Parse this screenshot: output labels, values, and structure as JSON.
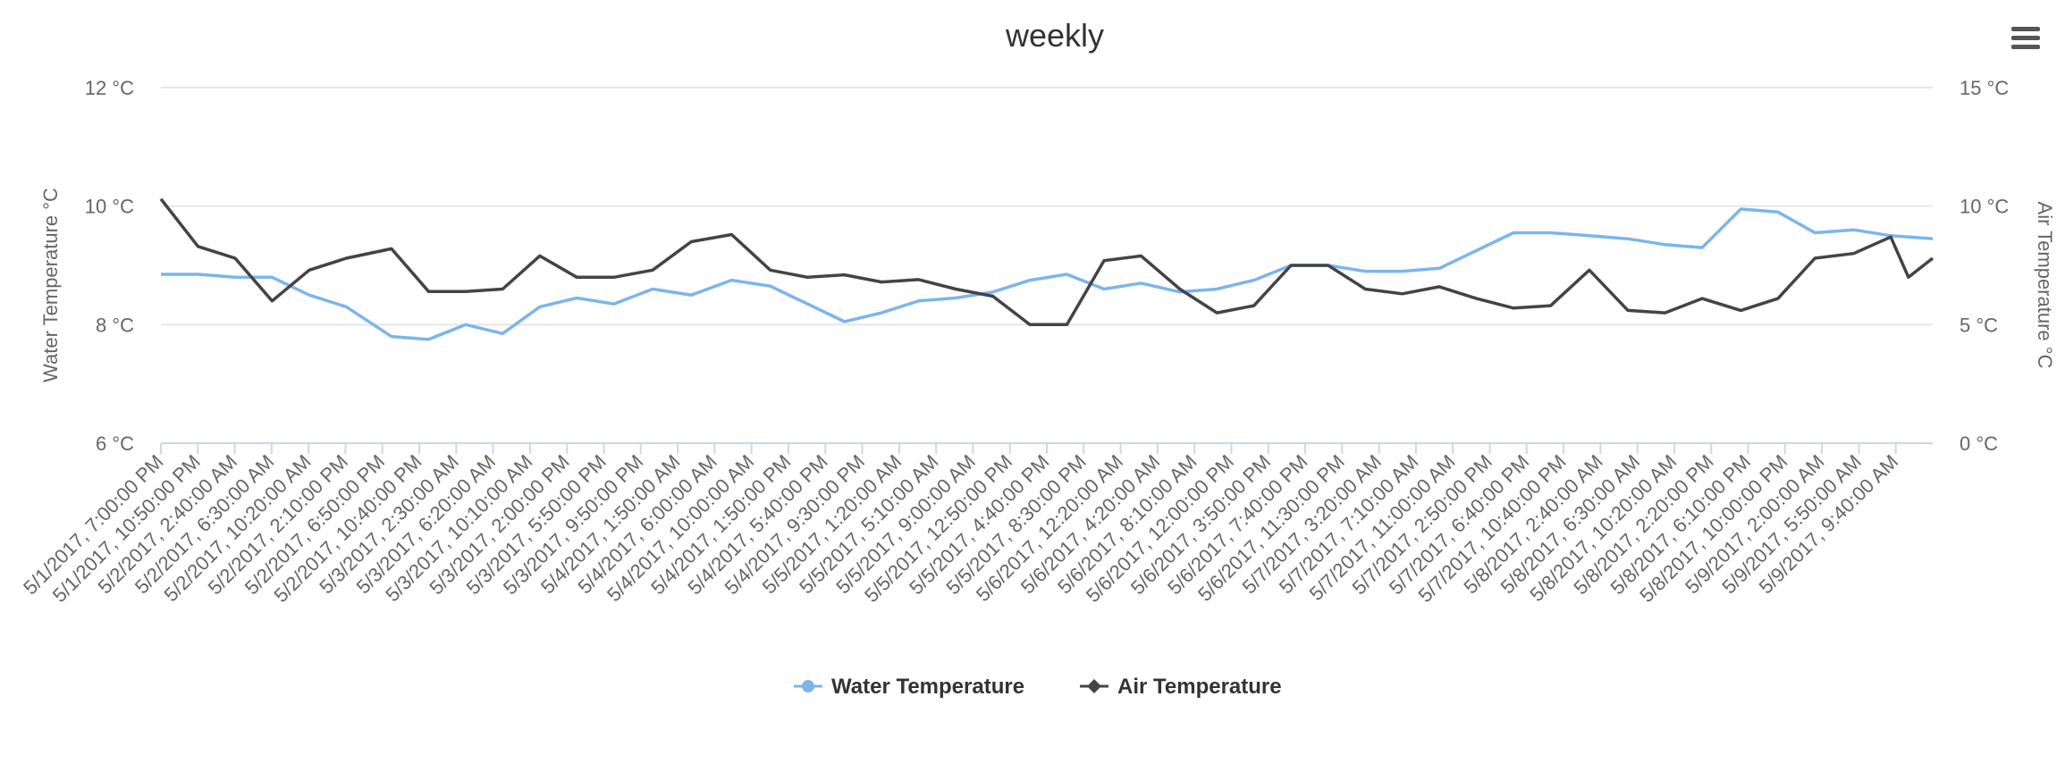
{
  "chart_data": {
    "type": "line",
    "title": "weekly",
    "xlabel": "",
    "y_left": {
      "label": "Water Temperature °C",
      "range": [
        6,
        12
      ],
      "ticks": [
        6,
        8,
        10,
        12
      ],
      "tick_labels": [
        "6 °C",
        "8 °C",
        "10 °C",
        "12 °C"
      ]
    },
    "y_right": {
      "label": "Air Temperature °C",
      "range": [
        0,
        15
      ],
      "ticks": [
        0,
        5,
        10,
        15
      ],
      "tick_labels": [
        "0 °C",
        "5 °C",
        "10 °C",
        "15 °C"
      ]
    },
    "grid": true,
    "legend_position": "bottom-center",
    "x_range": [
      "5/1/2017, 7:00:00 PM",
      "5/9/2017, 10:10:00 AM"
    ],
    "x_tick_labels": [
      "5/1/2017, 7:00:00 PM",
      "5/1/2017, 10:50:00 PM",
      "5/2/2017, 2:40:00 AM",
      "5/2/2017, 6:30:00 AM",
      "5/2/2017, 10:20:00 AM",
      "5/2/2017, 2:10:00 PM",
      "5/2/2017, 6:50:00 PM",
      "5/2/2017, 10:40:00 PM",
      "5/3/2017, 2:30:00 AM",
      "5/3/2017, 6:20:00 AM",
      "5/3/2017, 10:10:00 AM",
      "5/3/2017, 2:00:00 PM",
      "5/3/2017, 5:50:00 PM",
      "5/3/2017, 9:50:00 PM",
      "5/4/2017, 1:50:00 AM",
      "5/4/2017, 6:00:00 AM",
      "5/4/2017, 10:00:00 AM",
      "5/4/2017, 1:50:00 PM",
      "5/4/2017, 5:40:00 PM",
      "5/4/2017, 9:30:00 PM",
      "5/5/2017, 1:20:00 AM",
      "5/5/2017, 5:10:00 AM",
      "5/5/2017, 9:00:00 AM",
      "5/5/2017, 12:50:00 PM",
      "5/5/2017, 4:40:00 PM",
      "5/5/2017, 8:30:00 PM",
      "5/6/2017, 12:20:00 AM",
      "5/6/2017, 4:20:00 AM",
      "5/6/2017, 8:10:00 AM",
      "5/6/2017, 12:00:00 PM",
      "5/6/2017, 3:50:00 PM",
      "5/6/2017, 7:40:00 PM",
      "5/6/2017, 11:30:00 PM",
      "5/7/2017, 3:20:00 AM",
      "5/7/2017, 7:10:00 AM",
      "5/7/2017, 11:00:00 AM",
      "5/7/2017, 2:50:00 PM",
      "5/7/2017, 6:40:00 PM",
      "5/7/2017, 10:40:00 PM",
      "5/8/2017, 2:40:00 AM",
      "5/8/2017, 6:30:00 AM",
      "5/8/2017, 10:20:00 AM",
      "5/8/2017, 2:20:00 PM",
      "5/8/2017, 6:10:00 PM",
      "5/8/2017, 10:00:00 PM",
      "5/9/2017, 2:00:00 AM",
      "5/9/2017, 5:50:00 AM",
      "5/9/2017, 9:40:00 AM"
    ],
    "series": [
      {
        "name": "Water Temperature",
        "axis": "left",
        "color": "#7cb5ec",
        "marker": "circle",
        "points": [
          [
            "5/1/2017, 7:00:00 PM",
            8.85
          ],
          [
            "5/1/2017, 10:50:00 PM",
            8.85
          ],
          [
            "5/2/2017, 2:40:00 AM",
            8.8
          ],
          [
            "5/2/2017, 6:30:00 AM",
            8.8
          ],
          [
            "5/2/2017, 10:20:00 AM",
            8.5
          ],
          [
            "5/2/2017, 2:10:00 PM",
            8.3
          ],
          [
            "5/2/2017, 6:50:00 PM",
            7.8
          ],
          [
            "5/2/2017, 10:40:00 PM",
            7.75
          ],
          [
            "5/3/2017, 2:30:00 AM",
            8.0
          ],
          [
            "5/3/2017, 6:20:00 AM",
            7.85
          ],
          [
            "5/3/2017, 10:10:00 AM",
            8.3
          ],
          [
            "5/3/2017, 2:00:00 PM",
            8.45
          ],
          [
            "5/3/2017, 5:50:00 PM",
            8.35
          ],
          [
            "5/3/2017, 9:50:00 PM",
            8.6
          ],
          [
            "5/4/2017, 1:50:00 AM",
            8.5
          ],
          [
            "5/4/2017, 6:00:00 AM",
            8.75
          ],
          [
            "5/4/2017, 10:00:00 AM",
            8.65
          ],
          [
            "5/4/2017, 1:50:00 PM",
            8.35
          ],
          [
            "5/4/2017, 5:40:00 PM",
            8.05
          ],
          [
            "5/4/2017, 9:30:00 PM",
            8.2
          ],
          [
            "5/5/2017, 1:20:00 AM",
            8.4
          ],
          [
            "5/5/2017, 5:10:00 AM",
            8.45
          ],
          [
            "5/5/2017, 9:00:00 AM",
            8.55
          ],
          [
            "5/5/2017, 12:50:00 PM",
            8.75
          ],
          [
            "5/5/2017, 4:40:00 PM",
            8.85
          ],
          [
            "5/5/2017, 8:30:00 PM",
            8.6
          ],
          [
            "5/6/2017, 12:20:00 AM",
            8.7
          ],
          [
            "5/6/2017, 4:20:00 AM",
            8.55
          ],
          [
            "5/6/2017, 8:10:00 AM",
            8.6
          ],
          [
            "5/6/2017, 12:00:00 PM",
            8.75
          ],
          [
            "5/6/2017, 3:50:00 PM",
            9.0
          ],
          [
            "5/6/2017, 7:40:00 PM",
            9.0
          ],
          [
            "5/6/2017, 11:30:00 PM",
            8.9
          ],
          [
            "5/7/2017, 3:20:00 AM",
            8.9
          ],
          [
            "5/7/2017, 7:10:00 AM",
            8.95
          ],
          [
            "5/7/2017, 11:00:00 AM",
            9.25
          ],
          [
            "5/7/2017, 2:50:00 PM",
            9.55
          ],
          [
            "5/7/2017, 6:40:00 PM",
            9.55
          ],
          [
            "5/7/2017, 10:40:00 PM",
            9.5
          ],
          [
            "5/8/2017, 2:40:00 AM",
            9.45
          ],
          [
            "5/8/2017, 6:30:00 AM",
            9.35
          ],
          [
            "5/8/2017, 10:20:00 AM",
            9.3
          ],
          [
            "5/8/2017, 2:20:00 PM",
            9.95
          ],
          [
            "5/8/2017, 6:10:00 PM",
            9.9
          ],
          [
            "5/8/2017, 10:00:00 PM",
            9.55
          ],
          [
            "5/9/2017, 2:00:00 AM",
            9.6
          ],
          [
            "5/9/2017, 5:50:00 AM",
            9.5
          ],
          [
            "5/9/2017, 10:10:00 AM",
            9.45
          ]
        ]
      },
      {
        "name": "Air Temperature",
        "axis": "right",
        "color": "#434348",
        "marker": "diamond",
        "points": [
          [
            "5/1/2017, 7:00:00 PM",
            10.3
          ],
          [
            "5/1/2017, 10:50:00 PM",
            8.3
          ],
          [
            "5/2/2017, 2:40:00 AM",
            7.8
          ],
          [
            "5/2/2017, 6:30:00 AM",
            6.0
          ],
          [
            "5/2/2017, 10:20:00 AM",
            7.3
          ],
          [
            "5/2/2017, 2:10:00 PM",
            7.8
          ],
          [
            "5/2/2017, 6:50:00 PM",
            8.2
          ],
          [
            "5/2/2017, 10:40:00 PM",
            6.4
          ],
          [
            "5/3/2017, 2:30:00 AM",
            6.4
          ],
          [
            "5/3/2017, 6:20:00 AM",
            6.5
          ],
          [
            "5/3/2017, 10:10:00 AM",
            7.9
          ],
          [
            "5/3/2017, 2:00:00 PM",
            7.0
          ],
          [
            "5/3/2017, 5:50:00 PM",
            7.0
          ],
          [
            "5/3/2017, 9:50:00 PM",
            7.3
          ],
          [
            "5/4/2017, 1:50:00 AM",
            8.5
          ],
          [
            "5/4/2017, 6:00:00 AM",
            8.8
          ],
          [
            "5/4/2017, 10:00:00 AM",
            7.3
          ],
          [
            "5/4/2017, 1:50:00 PM",
            7.0
          ],
          [
            "5/4/2017, 5:40:00 PM",
            7.1
          ],
          [
            "5/4/2017, 9:30:00 PM",
            6.8
          ],
          [
            "5/5/2017, 1:20:00 AM",
            6.9
          ],
          [
            "5/5/2017, 5:10:00 AM",
            6.5
          ],
          [
            "5/5/2017, 9:00:00 AM",
            6.2
          ],
          [
            "5/5/2017, 12:50:00 PM",
            5.0
          ],
          [
            "5/5/2017, 4:40:00 PM",
            5.0
          ],
          [
            "5/5/2017, 8:30:00 PM",
            7.7
          ],
          [
            "5/6/2017, 12:20:00 AM",
            7.9
          ],
          [
            "5/6/2017, 4:20:00 AM",
            6.5
          ],
          [
            "5/6/2017, 8:10:00 AM",
            5.5
          ],
          [
            "5/6/2017, 12:00:00 PM",
            5.8
          ],
          [
            "5/6/2017, 3:50:00 PM",
            7.5
          ],
          [
            "5/6/2017, 7:40:00 PM",
            7.5
          ],
          [
            "5/6/2017, 11:30:00 PM",
            6.5
          ],
          [
            "5/7/2017, 3:20:00 AM",
            6.3
          ],
          [
            "5/7/2017, 7:10:00 AM",
            6.6
          ],
          [
            "5/7/2017, 11:00:00 AM",
            6.1
          ],
          [
            "5/7/2017, 2:50:00 PM",
            5.7
          ],
          [
            "5/7/2017, 6:40:00 PM",
            5.8
          ],
          [
            "5/7/2017, 10:40:00 PM",
            7.3
          ],
          [
            "5/8/2017, 2:40:00 AM",
            5.6
          ],
          [
            "5/8/2017, 6:30:00 AM",
            5.5
          ],
          [
            "5/8/2017, 10:20:00 AM",
            6.1
          ],
          [
            "5/8/2017, 2:20:00 PM",
            5.6
          ],
          [
            "5/8/2017, 6:10:00 PM",
            6.1
          ],
          [
            "5/8/2017, 10:00:00 PM",
            7.8
          ],
          [
            "5/9/2017, 2:00:00 AM",
            8.0
          ],
          [
            "5/9/2017, 5:50:00 AM",
            8.7
          ],
          [
            "5/9/2017, 7:40:00 AM",
            7.0
          ],
          [
            "5/9/2017, 10:10:00 AM",
            7.8
          ]
        ]
      }
    ]
  },
  "legend": [
    {
      "label": "Water Temperature",
      "color": "#7cb5ec"
    },
    {
      "label": "Air Temperature",
      "color": "#434348"
    }
  ],
  "ui": {
    "menu_icon": "hamburger-menu-icon"
  }
}
